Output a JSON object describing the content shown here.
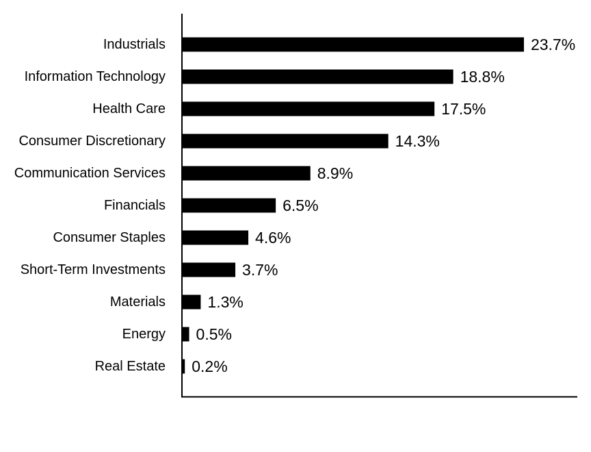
{
  "chart_data": {
    "type": "bar",
    "orientation": "horizontal",
    "title": "",
    "xlabel": "",
    "ylabel": "",
    "grid": false,
    "legend": "none",
    "bar_color": "#000000",
    "value_suffix": "%",
    "xlim": [
      0,
      27.4
    ],
    "categories": [
      "Industrials",
      "Information Technology",
      "Health Care",
      "Consumer Discretionary",
      "Communication Services",
      "Financials",
      "Consumer Staples",
      "Short-Term Investments",
      "Materials",
      "Energy",
      "Real Estate"
    ],
    "values": [
      23.7,
      18.8,
      17.5,
      14.3,
      8.9,
      6.5,
      4.6,
      3.7,
      1.3,
      0.5,
      0.2
    ],
    "value_labels": [
      "23.7%",
      "18.8%",
      "17.5%",
      "14.3%",
      "8.9%",
      "6.5%",
      "4.6%",
      "3.7%",
      "1.3%",
      "0.5%",
      "0.2%"
    ]
  }
}
